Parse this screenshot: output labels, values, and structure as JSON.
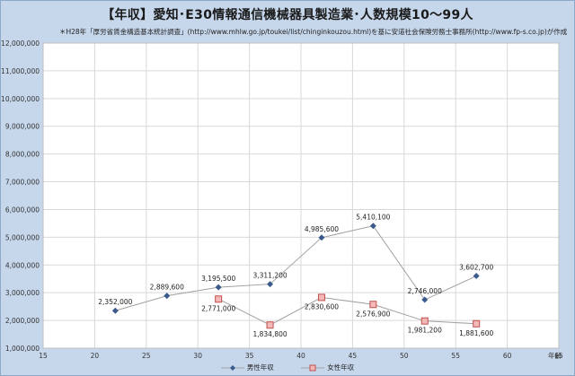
{
  "title": "【年収】愛知･E30情報通信機械器具製造業･人数規模10～99人",
  "source_note": "＊H28年「厚労省賃金構造基本統計調査」(http://www.mhlw.go.jp/toukei/list/chinginkouzou.html)を基に安道社会保険労務士事務所(http://www.fp-s.co.jp)が作成",
  "colors": {
    "male": "#3a5a8c",
    "female": "#c0504d",
    "female_fill": "#f4b9b6",
    "line": "#a0a0a0",
    "grid": "#d9d9d9",
    "plot_bg": "#ffffff"
  },
  "chart_data": {
    "type": "line",
    "title": "【年収】愛知･E30情報通信機械器具製造業･人数規模10～99人",
    "xlabel": "年齢",
    "ylabel": "",
    "xlim": [
      15,
      65
    ],
    "ylim": [
      1000000,
      12000000
    ],
    "x_ticks": [
      "15",
      "20",
      "25",
      "30",
      "35",
      "40",
      "45",
      "50",
      "55",
      "60",
      "65"
    ],
    "y_ticks": [
      "1,000,000",
      "2,000,000",
      "3,000,000",
      "4,000,000",
      "5,000,000",
      "6,000,000",
      "7,000,000",
      "8,000,000",
      "9,000,000",
      "10,000,000",
      "11,000,000",
      "12,000,000"
    ],
    "grid": true,
    "legend": "bottom",
    "series": [
      {
        "name": "男性年収",
        "marker": "diamond",
        "x": [
          22,
          27,
          32,
          37,
          42,
          47,
          52,
          57
        ],
        "values": [
          2352000,
          2889600,
          3195500,
          3311200,
          4985600,
          5410100,
          2746000,
          3602700
        ],
        "labels": [
          "2,352,000",
          "2,889,600",
          "3,195,500",
          "3,311,200",
          "4,985,600",
          "5,410,100",
          "2,746,000",
          "3,602,700"
        ],
        "label_pos": "above"
      },
      {
        "name": "女性年収",
        "marker": "square",
        "x": [
          32,
          37,
          42,
          47,
          52,
          57
        ],
        "values": [
          2771000,
          1834800,
          2830600,
          2576900,
          1981200,
          1881600
        ],
        "labels": [
          "2,771,000",
          "1,834,800",
          "2,830,600",
          "2,576,900",
          "1,981,200",
          "1,881,600"
        ],
        "label_pos": "below"
      }
    ]
  }
}
